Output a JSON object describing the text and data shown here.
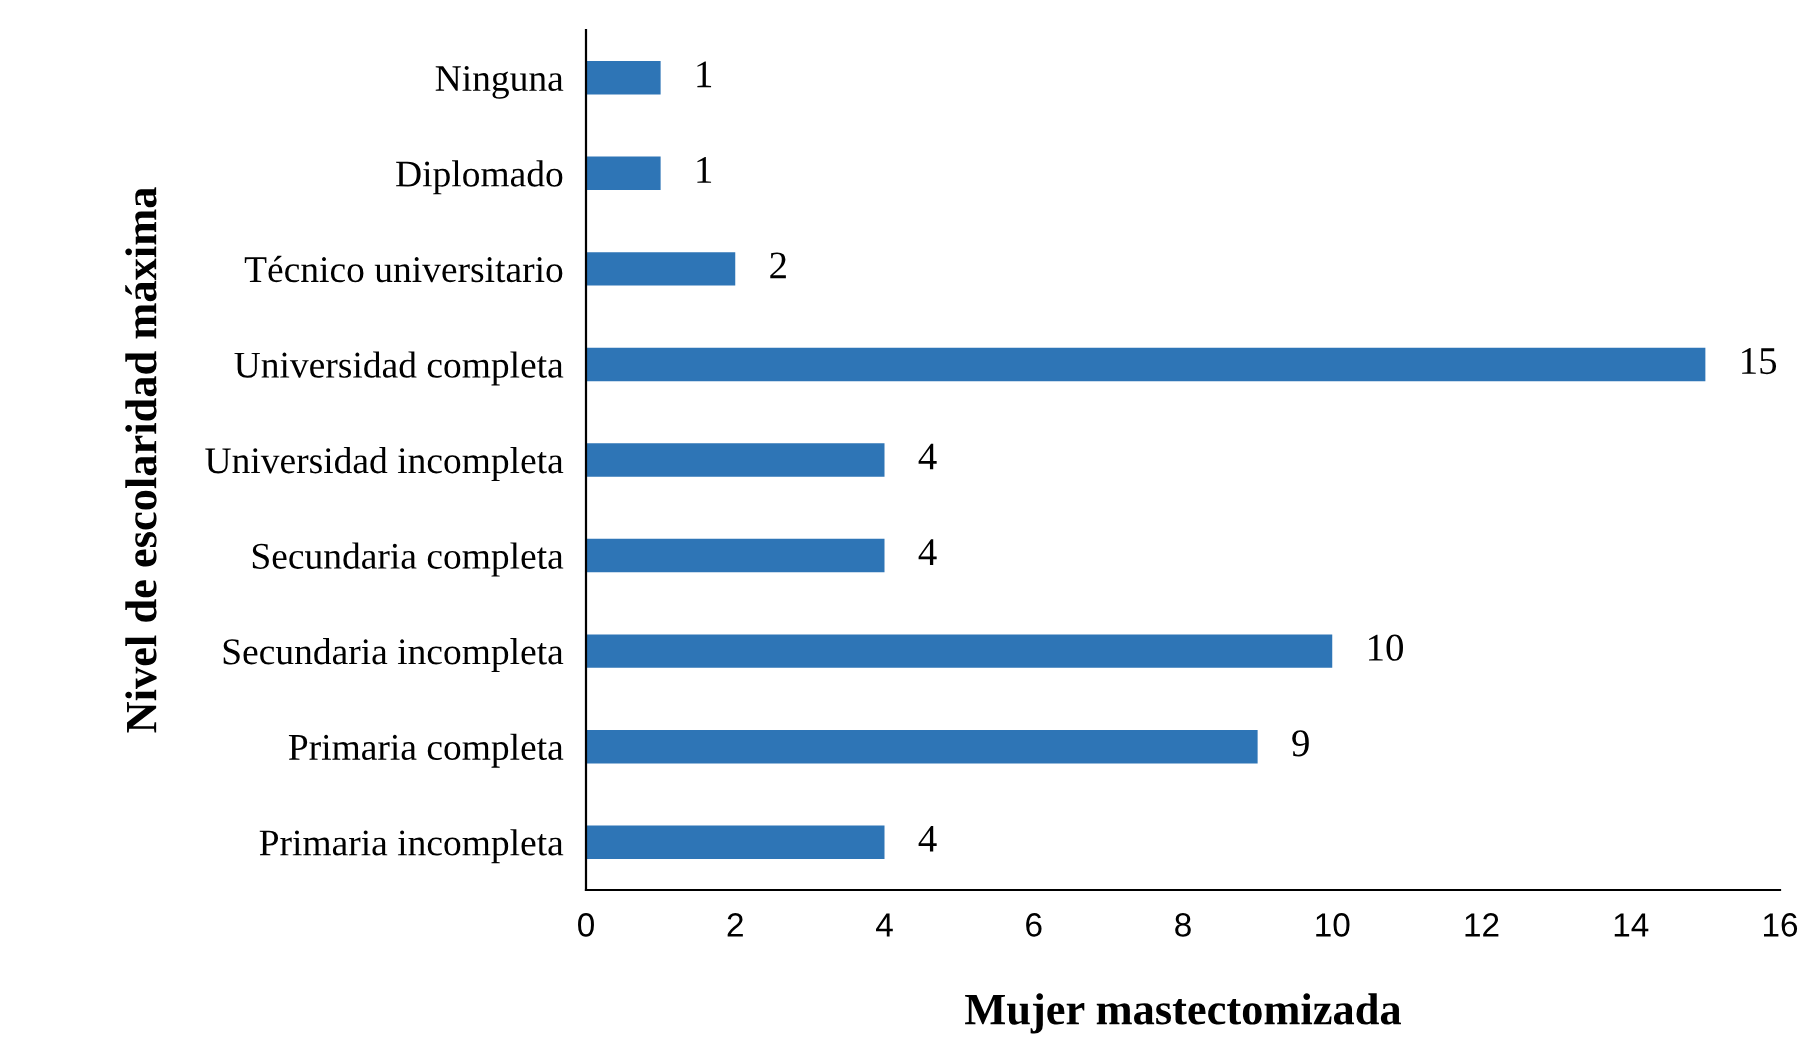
{
  "chart_data": {
    "type": "bar",
    "orientation": "horizontal",
    "xlabel": "Mujer mastectomizada",
    "ylabel": "Nivel de escolaridad máxima",
    "categories": [
      "Ninguna",
      "Diplomado",
      "Técnico universitario",
      "Universidad completa",
      "Universidad incompleta",
      "Secundaria completa",
      "Secundaria incompleta",
      "Primaria completa",
      "Primaria incompleta"
    ],
    "values": [
      1,
      1,
      2,
      15,
      4,
      4,
      10,
      9,
      4
    ],
    "color": "#2e75b6",
    "xlim": [
      0,
      16
    ],
    "xticks": [
      0,
      2,
      4,
      6,
      8,
      10,
      12,
      14,
      16
    ],
    "grid": false,
    "legend": false,
    "data_labels": true
  }
}
